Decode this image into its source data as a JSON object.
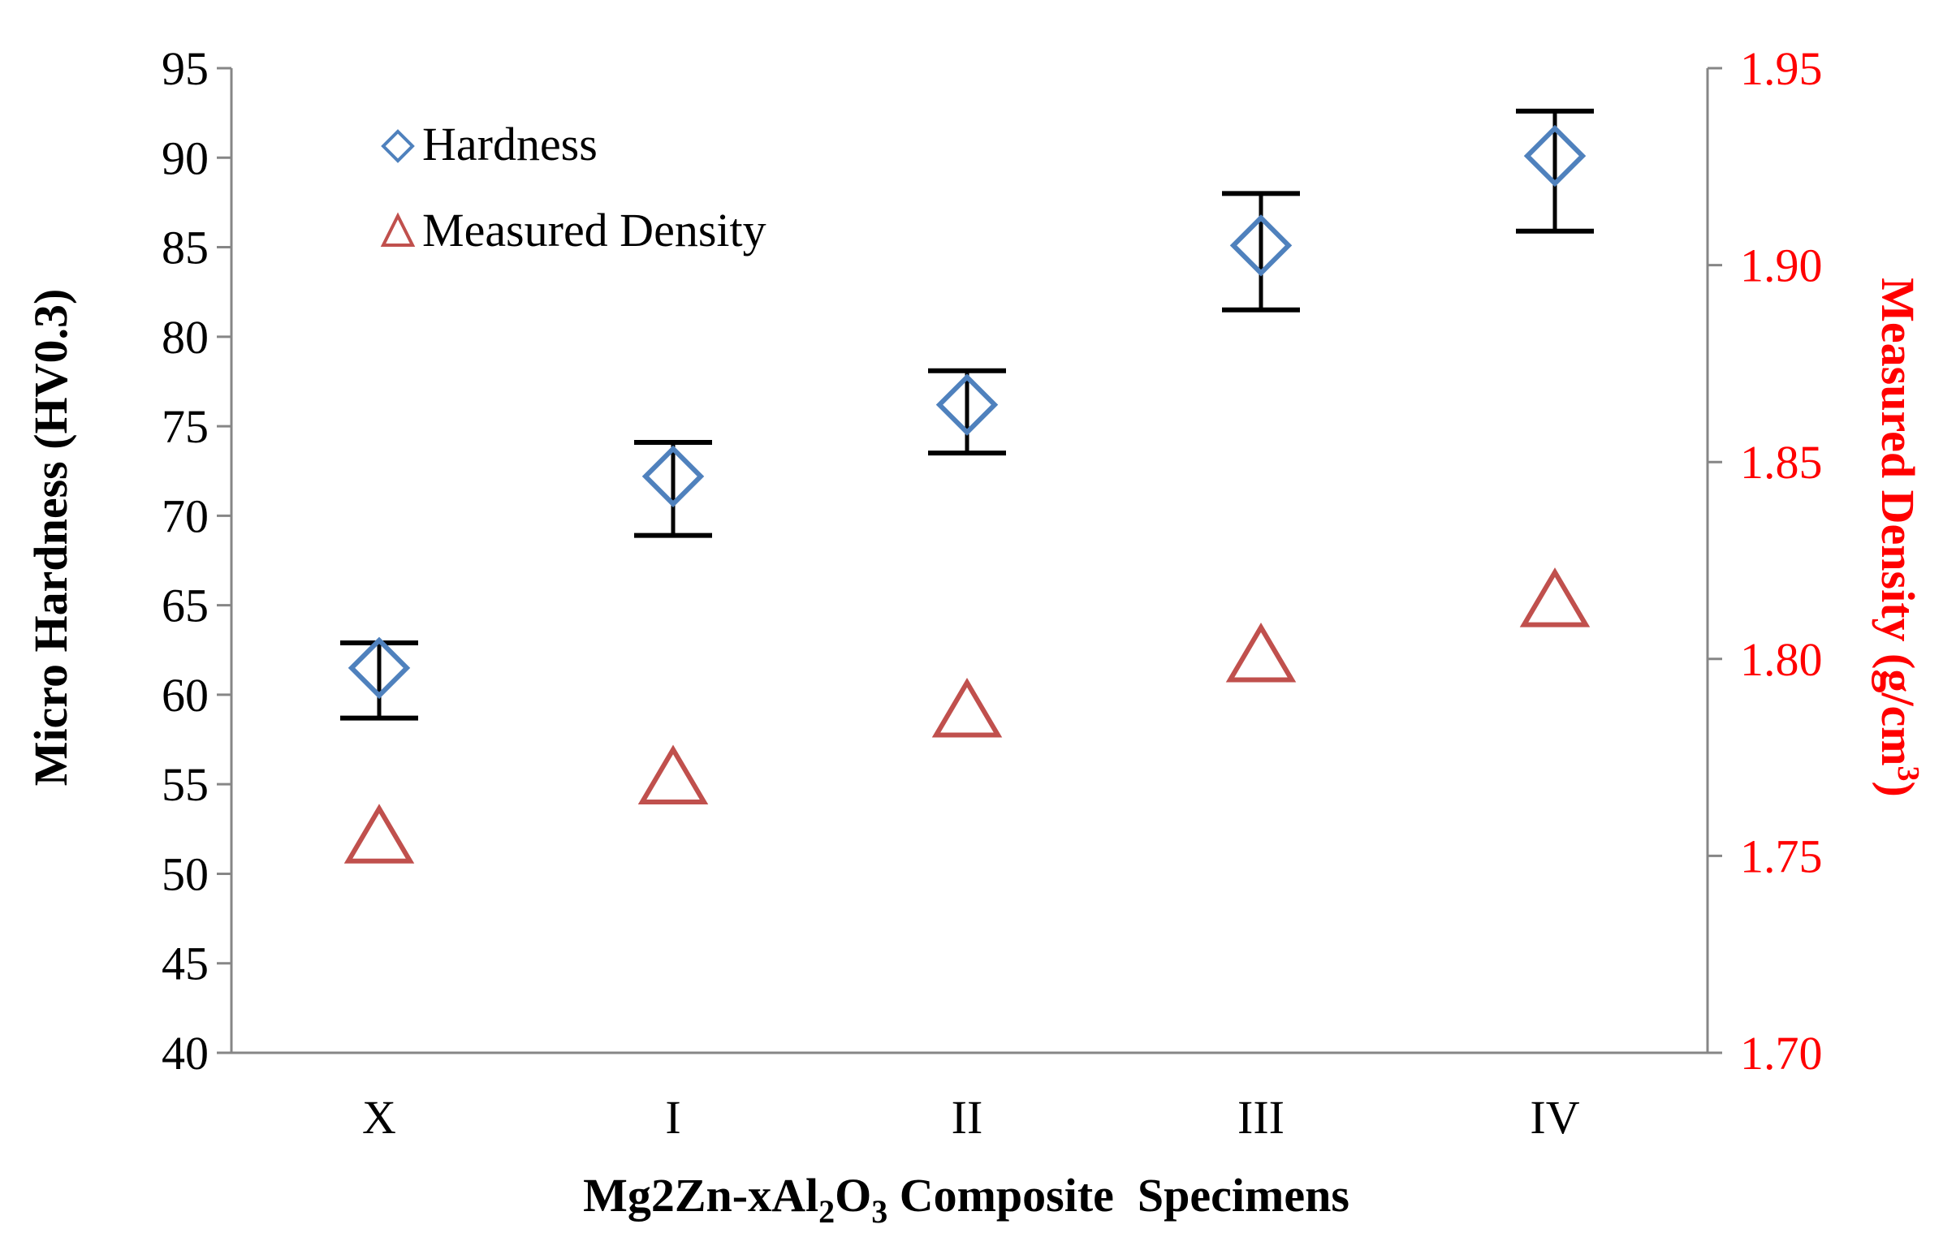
{
  "chart_data": {
    "type": "scatter",
    "categories": [
      "X",
      "I",
      "II",
      "III",
      "IV"
    ],
    "xlabel": {
      "prefix": "Mg2Zn-xAl",
      "sub1": "2",
      "mid": "O",
      "sub2": "3",
      "suffix": " Composite  Specimens"
    },
    "y_left": {
      "label": "Micro Hardness (HV0.3)",
      "lim": [
        40,
        95
      ],
      "ticks": [
        "95",
        "90",
        "85",
        "80",
        "75",
        "70",
        "65",
        "60",
        "55",
        "50",
        "45",
        "40"
      ]
    },
    "y_right": {
      "label_prefix": "Measured Density (g/cm",
      "label_sup": "3",
      "label_suffix": ")",
      "lim": [
        1.7,
        1.95
      ],
      "ticks": [
        "1.95",
        "1.90",
        "1.85",
        "1.80",
        "1.75",
        "1.70"
      ]
    },
    "series": [
      {
        "name": "Hardness",
        "axis": "left",
        "marker": "diamond",
        "color": "#4f81bd",
        "values": [
          61.5,
          72.2,
          76.2,
          85.1,
          90.1
        ],
        "error_low": [
          58.7,
          68.9,
          73.5,
          81.5,
          85.9
        ],
        "error_high": [
          62.9,
          74.1,
          78.1,
          88.0,
          92.6
        ]
      },
      {
        "name": "Measured Density",
        "axis": "right",
        "marker": "triangle",
        "color": "#c0504d",
        "values": [
          1.755,
          1.77,
          1.787,
          1.801,
          1.815
        ]
      }
    ],
    "legend_position": "top-left",
    "error_bar_color": "#000000"
  }
}
